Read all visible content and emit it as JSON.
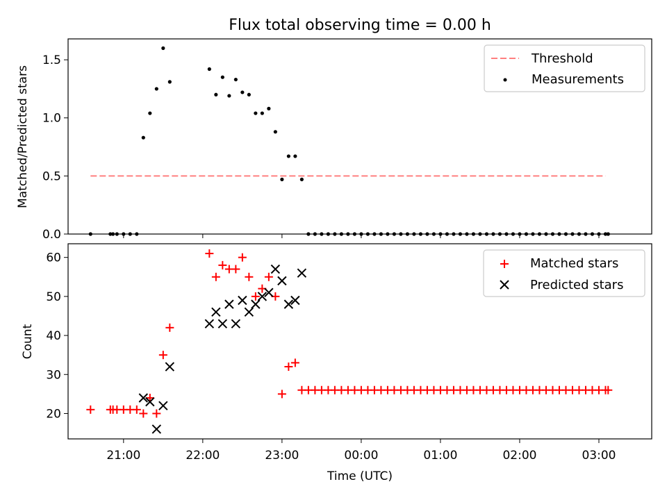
{
  "title": "Flux total observing time = 0.00 h",
  "colors": {
    "threshold": "#ff7f7f",
    "measurement": "#000000",
    "matched": "#ff0000",
    "predicted": "#000000"
  },
  "chart_data": [
    {
      "type": "scatter",
      "ylabel": "Matched/Predicted stars",
      "ylim": [
        0,
        1.68
      ],
      "yticks": [
        "0.0",
        "0.5",
        "1.0",
        "1.5"
      ],
      "ytick_values": [
        0,
        0.5,
        1.0,
        1.5
      ],
      "legend_placement": "top-right",
      "legend": [
        "Threshold",
        "Measurements"
      ],
      "threshold": {
        "name": "Threshold",
        "value": 0.5,
        "x_range": [
          "20:35",
          "03:05"
        ]
      },
      "series": [
        {
          "name": "Measurements",
          "points": [
            [
              "20:35",
              0
            ],
            [
              "20:50",
              0
            ],
            [
              "20:52",
              0
            ],
            [
              "20:55",
              0
            ],
            [
              "21:00",
              0
            ],
            [
              "21:05",
              0
            ],
            [
              "21:10",
              0
            ],
            [
              "21:15",
              0.83
            ],
            [
              "21:20",
              1.04
            ],
            [
              "21:25",
              1.25
            ],
            [
              "21:30",
              1.6
            ],
            [
              "21:35",
              1.31
            ],
            [
              "22:05",
              1.42
            ],
            [
              "22:10",
              1.2
            ],
            [
              "22:15",
              1.35
            ],
            [
              "22:20",
              1.19
            ],
            [
              "22:25",
              1.33
            ],
            [
              "22:30",
              1.22
            ],
            [
              "22:35",
              1.2
            ],
            [
              "22:40",
              1.04
            ],
            [
              "22:45",
              1.04
            ],
            [
              "22:50",
              1.08
            ],
            [
              "22:55",
              0.88
            ],
            [
              "23:00",
              0.47
            ],
            [
              "23:05",
              0.67
            ],
            [
              "23:10",
              0.67
            ],
            [
              "23:15",
              0.47
            ],
            [
              "23:20",
              0
            ],
            [
              "23:25",
              0
            ],
            [
              "23:30",
              0
            ],
            [
              "23:35",
              0
            ],
            [
              "23:40",
              0
            ],
            [
              "23:45",
              0
            ],
            [
              "23:50",
              0
            ],
            [
              "23:55",
              0
            ],
            [
              "00:00",
              0
            ],
            [
              "00:05",
              0
            ],
            [
              "00:10",
              0
            ],
            [
              "00:15",
              0
            ],
            [
              "00:20",
              0
            ],
            [
              "00:25",
              0
            ],
            [
              "00:30",
              0
            ],
            [
              "00:35",
              0
            ],
            [
              "00:40",
              0
            ],
            [
              "00:45",
              0
            ],
            [
              "00:50",
              0
            ],
            [
              "00:55",
              0
            ],
            [
              "01:00",
              0
            ],
            [
              "01:05",
              0
            ],
            [
              "01:10",
              0
            ],
            [
              "01:15",
              0
            ],
            [
              "01:20",
              0
            ],
            [
              "01:25",
              0
            ],
            [
              "01:30",
              0
            ],
            [
              "01:35",
              0
            ],
            [
              "01:40",
              0
            ],
            [
              "01:45",
              0
            ],
            [
              "01:50",
              0
            ],
            [
              "01:55",
              0
            ],
            [
              "02:00",
              0
            ],
            [
              "02:05",
              0
            ],
            [
              "02:10",
              0
            ],
            [
              "02:15",
              0
            ],
            [
              "02:20",
              0
            ],
            [
              "02:25",
              0
            ],
            [
              "02:30",
              0
            ],
            [
              "02:35",
              0
            ],
            [
              "02:40",
              0
            ],
            [
              "02:45",
              0
            ],
            [
              "02:50",
              0
            ],
            [
              "02:55",
              0
            ],
            [
              "03:00",
              0
            ],
            [
              "03:05",
              0
            ],
            [
              "03:07",
              0
            ]
          ]
        }
      ]
    },
    {
      "type": "scatter",
      "ylabel": "Count",
      "xlabel": "Time (UTC)",
      "ylim": [
        13.5,
        63.5
      ],
      "yticks": [
        "20",
        "30",
        "40",
        "50",
        "60"
      ],
      "ytick_values": [
        20,
        30,
        40,
        50,
        60
      ],
      "xlim": [
        "20:18",
        "03:40"
      ],
      "xticks": [
        "21:00",
        "22:00",
        "23:00",
        "00:00",
        "01:00",
        "02:00",
        "03:00"
      ],
      "legend_placement": "top-right",
      "legend": [
        "Matched stars",
        "Predicted stars"
      ],
      "series": [
        {
          "name": "Matched stars",
          "marker": "plus",
          "points": [
            [
              "20:35",
              21
            ],
            [
              "20:50",
              21
            ],
            [
              "20:52",
              21
            ],
            [
              "20:55",
              21
            ],
            [
              "21:00",
              21
            ],
            [
              "21:05",
              21
            ],
            [
              "21:10",
              21
            ],
            [
              "21:15",
              20
            ],
            [
              "21:20",
              24
            ],
            [
              "21:25",
              20
            ],
            [
              "21:30",
              35
            ],
            [
              "21:35",
              42
            ],
            [
              "22:05",
              61
            ],
            [
              "22:10",
              55
            ],
            [
              "22:15",
              58
            ],
            [
              "22:20",
              57
            ],
            [
              "22:25",
              57
            ],
            [
              "22:30",
              60
            ],
            [
              "22:35",
              55
            ],
            [
              "22:40",
              50
            ],
            [
              "22:45",
              52
            ],
            [
              "22:50",
              55
            ],
            [
              "22:55",
              50
            ],
            [
              "23:00",
              25
            ],
            [
              "23:05",
              32
            ],
            [
              "23:10",
              33
            ],
            [
              "23:15",
              26
            ],
            [
              "23:20",
              26
            ],
            [
              "23:25",
              26
            ],
            [
              "23:30",
              26
            ],
            [
              "23:35",
              26
            ],
            [
              "23:40",
              26
            ],
            [
              "23:45",
              26
            ],
            [
              "23:50",
              26
            ],
            [
              "23:55",
              26
            ],
            [
              "00:00",
              26
            ],
            [
              "00:05",
              26
            ],
            [
              "00:10",
              26
            ],
            [
              "00:15",
              26
            ],
            [
              "00:20",
              26
            ],
            [
              "00:25",
              26
            ],
            [
              "00:30",
              26
            ],
            [
              "00:35",
              26
            ],
            [
              "00:40",
              26
            ],
            [
              "00:45",
              26
            ],
            [
              "00:50",
              26
            ],
            [
              "00:55",
              26
            ],
            [
              "01:00",
              26
            ],
            [
              "01:05",
              26
            ],
            [
              "01:10",
              26
            ],
            [
              "01:15",
              26
            ],
            [
              "01:20",
              26
            ],
            [
              "01:25",
              26
            ],
            [
              "01:30",
              26
            ],
            [
              "01:35",
              26
            ],
            [
              "01:40",
              26
            ],
            [
              "01:45",
              26
            ],
            [
              "01:50",
              26
            ],
            [
              "01:55",
              26
            ],
            [
              "02:00",
              26
            ],
            [
              "02:05",
              26
            ],
            [
              "02:10",
              26
            ],
            [
              "02:15",
              26
            ],
            [
              "02:20",
              26
            ],
            [
              "02:25",
              26
            ],
            [
              "02:30",
              26
            ],
            [
              "02:35",
              26
            ],
            [
              "02:40",
              26
            ],
            [
              "02:45",
              26
            ],
            [
              "02:50",
              26
            ],
            [
              "02:55",
              26
            ],
            [
              "03:00",
              26
            ],
            [
              "03:05",
              26
            ],
            [
              "03:07",
              26
            ]
          ]
        },
        {
          "name": "Predicted stars",
          "marker": "x",
          "points": [
            [
              "21:15",
              24
            ],
            [
              "21:20",
              23
            ],
            [
              "21:25",
              16
            ],
            [
              "21:30",
              22
            ],
            [
              "21:35",
              32
            ],
            [
              "22:05",
              43
            ],
            [
              "22:10",
              46
            ],
            [
              "22:15",
              43
            ],
            [
              "22:20",
              48
            ],
            [
              "22:25",
              43
            ],
            [
              "22:30",
              49
            ],
            [
              "22:35",
              46
            ],
            [
              "22:40",
              48
            ],
            [
              "22:45",
              50
            ],
            [
              "22:50",
              51
            ],
            [
              "22:55",
              57
            ],
            [
              "23:00",
              54
            ],
            [
              "23:05",
              48
            ],
            [
              "23:10",
              49
            ],
            [
              "23:15",
              56
            ]
          ]
        }
      ]
    }
  ]
}
